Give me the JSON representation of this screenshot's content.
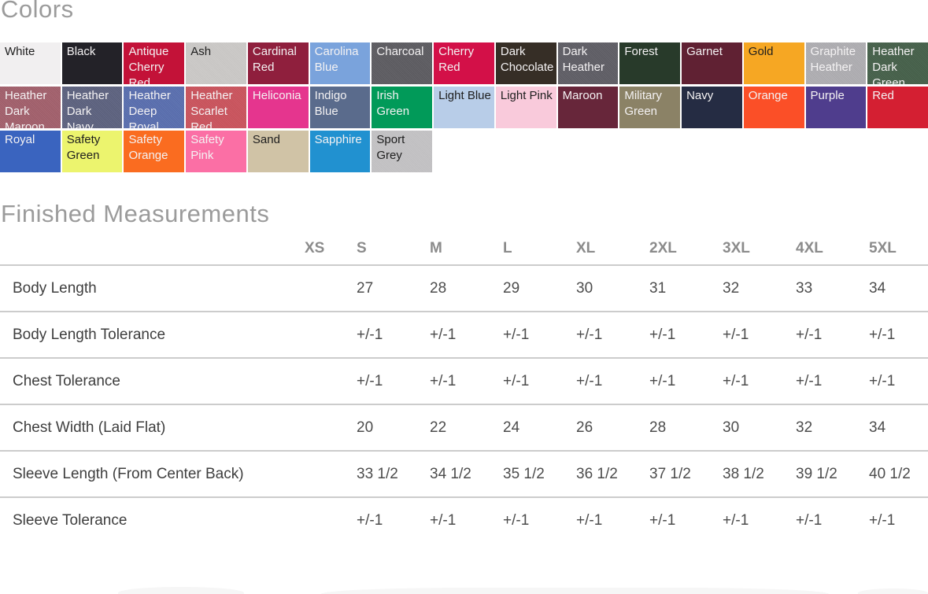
{
  "colors_section": {
    "title": "Colors",
    "swatches": [
      {
        "name": "White",
        "hex": "#f1eff0",
        "text": "dark",
        "heather": false
      },
      {
        "name": "Black",
        "hex": "#232228",
        "text": "light",
        "heather": false
      },
      {
        "name": "Antique Cherry Red",
        "hex": "#c31238",
        "text": "light",
        "heather": false
      },
      {
        "name": "Ash",
        "hex": "#cac8c6",
        "text": "dark",
        "heather": true
      },
      {
        "name": "Cardinal Red",
        "hex": "#8f1f3d",
        "text": "light",
        "heather": false
      },
      {
        "name": "Carolina Blue",
        "hex": "#7aa3dc",
        "text": "light",
        "heather": false
      },
      {
        "name": "Charcoal",
        "hex": "#5f5e63",
        "text": "light",
        "heather": true
      },
      {
        "name": "Cherry Red",
        "hex": "#d31048",
        "text": "light",
        "heather": false
      },
      {
        "name": "Dark Chocolate",
        "hex": "#362e26",
        "text": "light",
        "heather": false
      },
      {
        "name": "Dark Heather",
        "hex": "#616067",
        "text": "light",
        "heather": true
      },
      {
        "name": "Forest",
        "hex": "#283a2a",
        "text": "light",
        "heather": false
      },
      {
        "name": "Garnet",
        "hex": "#602133",
        "text": "light",
        "heather": false
      },
      {
        "name": "Gold",
        "hex": "#f6a723",
        "text": "dark",
        "heather": false
      },
      {
        "name": "Graphite Heather",
        "hex": "#aeadb1",
        "text": "light",
        "heather": true
      },
      {
        "name": "Heather Dark Green",
        "hex": "#49624d",
        "text": "light",
        "heather": true
      },
      {
        "name": "Heather Dark Maroon",
        "hex": "#a2626e",
        "text": "light",
        "heather": true
      },
      {
        "name": "Heather Dark Navy",
        "hex": "#5f6480",
        "text": "light",
        "heather": true
      },
      {
        "name": "Heather Deep Royal",
        "hex": "#5c70ae",
        "text": "light",
        "heather": true
      },
      {
        "name": "Heather Scarlet Red",
        "hex": "#c9565f",
        "text": "light",
        "heather": true
      },
      {
        "name": "Heliconia",
        "hex": "#e5358e",
        "text": "light",
        "heather": false
      },
      {
        "name": "Indigo Blue",
        "hex": "#5a6b8c",
        "text": "light",
        "heather": false
      },
      {
        "name": "Irish Green",
        "hex": "#019a59",
        "text": "light",
        "heather": false
      },
      {
        "name": "Light Blue",
        "hex": "#b8cde8",
        "text": "dark",
        "heather": false
      },
      {
        "name": "Light Pink",
        "hex": "#f9cadb",
        "text": "dark",
        "heather": false
      },
      {
        "name": "Maroon",
        "hex": "#67263a",
        "text": "light",
        "heather": false
      },
      {
        "name": "Military Green",
        "hex": "#8b8266",
        "text": "light",
        "heather": false
      },
      {
        "name": "Navy",
        "hex": "#252c43",
        "text": "light",
        "heather": false
      },
      {
        "name": "Orange",
        "hex": "#fb4f27",
        "text": "light",
        "heather": false
      },
      {
        "name": "Purple",
        "hex": "#4f3d8d",
        "text": "light",
        "heather": false
      },
      {
        "name": "Red",
        "hex": "#d41f32",
        "text": "light",
        "heather": false
      },
      {
        "name": "Royal",
        "hex": "#3a64bf",
        "text": "light",
        "heather": false
      },
      {
        "name": "Safety Green",
        "hex": "#ecf46e",
        "text": "dark",
        "heather": false
      },
      {
        "name": "Safety Orange",
        "hex": "#fa6c20",
        "text": "light",
        "heather": false
      },
      {
        "name": "Safety Pink",
        "hex": "#fb6fa5",
        "text": "light",
        "heather": false
      },
      {
        "name": "Sand",
        "hex": "#d0c3a6",
        "text": "dark",
        "heather": false
      },
      {
        "name": "Sapphire",
        "hex": "#2191d0",
        "text": "light",
        "heather": false
      },
      {
        "name": "Sport Grey",
        "hex": "#c2c1c3",
        "text": "dark",
        "heather": true
      }
    ]
  },
  "measurements_section": {
    "title": "Finished Measurements",
    "sizes": [
      "XS",
      "S",
      "M",
      "L",
      "XL",
      "2XL",
      "3XL",
      "4XL",
      "5XL"
    ],
    "rows": [
      {
        "label": "Body Length",
        "values": [
          "",
          "27",
          "28",
          "29",
          "30",
          "31",
          "32",
          "33",
          "34"
        ]
      },
      {
        "label": "Body Length Tolerance",
        "values": [
          "",
          "+/-1",
          "+/-1",
          "+/-1",
          "+/-1",
          "+/-1",
          "+/-1",
          "+/-1",
          "+/-1"
        ]
      },
      {
        "label": "Chest Tolerance",
        "values": [
          "",
          "+/-1",
          "+/-1",
          "+/-1",
          "+/-1",
          "+/-1",
          "+/-1",
          "+/-1",
          "+/-1"
        ]
      },
      {
        "label": "Chest Width (Laid Flat)",
        "values": [
          "",
          "20",
          "22",
          "24",
          "26",
          "28",
          "30",
          "32",
          "34"
        ]
      },
      {
        "label": "Sleeve Length (From Center Back)",
        "values": [
          "",
          "33 1/2",
          "34 1/2",
          "35 1/2",
          "36 1/2",
          "37 1/2",
          "38 1/2",
          "39 1/2",
          "40 1/2"
        ]
      },
      {
        "label": "Sleeve Tolerance",
        "values": [
          "",
          "+/-1",
          "+/-1",
          "+/-1",
          "+/-1",
          "+/-1",
          "+/-1",
          "+/-1",
          "+/-1"
        ]
      }
    ]
  },
  "accent_colors": {
    "heading_grey": "#9b9b9b",
    "table_border_grey": "#cccccc",
    "header_text_grey": "#8b8b8b",
    "body_text_grey": "#4c4c4c"
  }
}
